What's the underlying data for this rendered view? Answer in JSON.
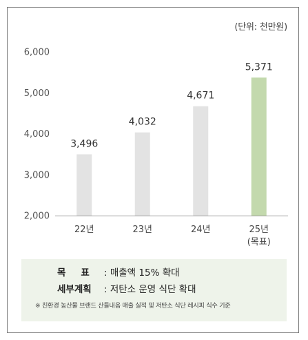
{
  "unit_label": "(단위: 천만원)",
  "chart_data": {
    "type": "bar",
    "categories": [
      "22년",
      "23년",
      "24년",
      "25년"
    ],
    "category_sublabels": [
      "",
      "",
      "",
      "(목표)"
    ],
    "values": [
      3496,
      4032,
      4671,
      5371
    ],
    "value_labels": [
      "3,496",
      "4,032",
      "4,671",
      "5,371"
    ],
    "highlight_index": 3,
    "ylim": [
      2000,
      6000
    ],
    "yticks": [
      2000,
      3000,
      4000,
      5000,
      6000
    ],
    "ytick_labels": [
      "2,000",
      "3,000",
      "4,000",
      "5,000",
      "6,000"
    ],
    "grid": false,
    "colors": {
      "bar": "#e3e3e3",
      "highlight_bar": "#c3d9ad",
      "axis": "#9a9a9a",
      "text": "#333333"
    }
  },
  "goals": {
    "target_label": "목표",
    "target_value": ": 매출액 15% 확대",
    "plan_label": "세부계획",
    "plan_value": ": 저탄소 운영 식단 확대",
    "footnote": "※ 친환경 농산물 브랜드 산들내음 매출 실적 및 저탄소 식단 레시피 식수 기준"
  },
  "colors": {
    "note_background": "#eef3ea",
    "border": "#7a7a7a"
  }
}
